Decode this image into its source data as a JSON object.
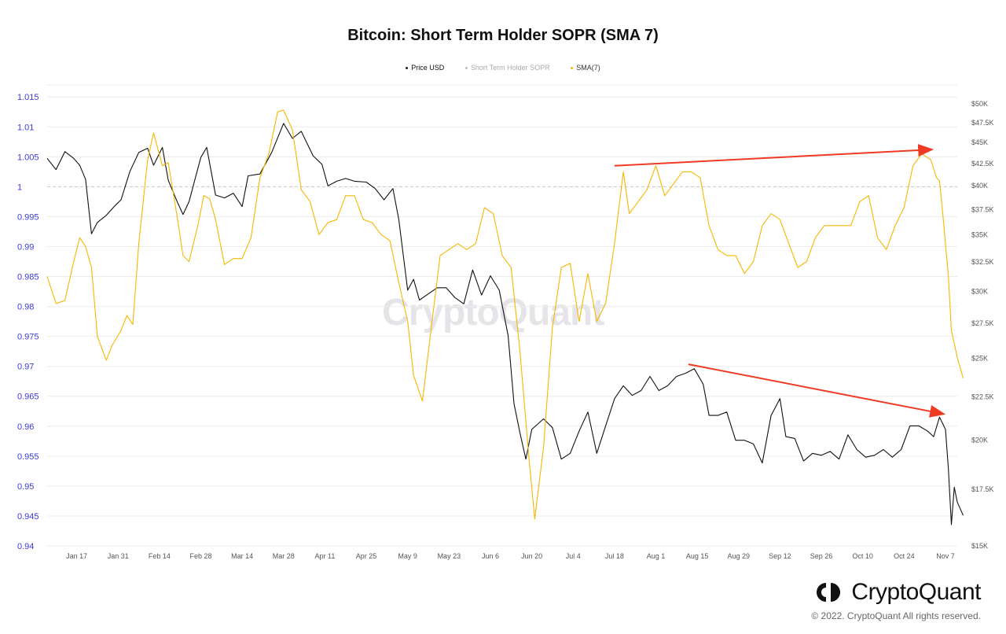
{
  "chart_data": {
    "type": "line",
    "title": "Bitcoin: Short Term Holder SOPR (SMA 7)",
    "legend": [
      {
        "name": "Price USD",
        "color": "#111111"
      },
      {
        "name": "Short Term Holder SOPR",
        "color": "#bdbdbd"
      },
      {
        "name": "SMA(7)",
        "color": "#f5b700"
      }
    ],
    "legend_placement": "top",
    "grid": true,
    "left_axis": {
      "ylim": [
        0.94,
        1.017
      ],
      "ticks": [
        "1.015",
        "1.01",
        "1.005",
        "1",
        "0.995",
        "0.99",
        "0.985",
        "0.98",
        "0.975",
        "0.97",
        "0.965",
        "0.96",
        "0.955",
        "0.95",
        "0.945",
        "0.94"
      ],
      "reference_line": 1.0
    },
    "right_axis": {
      "scale": "log",
      "ylim": [
        15000,
        50000
      ],
      "ticks": [
        "$50K",
        "$47.5K",
        "$45K",
        "$42.5K",
        "$40K",
        "$37.5K",
        "$35K",
        "$32.5K",
        "$30K",
        "$27.5K",
        "$25K",
        "$22.5K",
        "$20K",
        "$17.5K",
        "$15K"
      ]
    },
    "x_ticks": [
      "Jan 17",
      "Jan 31",
      "Feb 14",
      "Feb 28",
      "Mar 14",
      "Mar 28",
      "Apr 11",
      "Apr 25",
      "May 9",
      "May 23",
      "Jun 6",
      "Jun 20",
      "Jul 4",
      "Jul 18",
      "Aug 1",
      "Aug 15",
      "Aug 29",
      "Sep 12",
      "Sep 26",
      "Oct 10",
      "Oct 24",
      "Nov 7"
    ],
    "x_range": [
      "2022-01-07",
      "2022-11-11"
    ],
    "series": [
      {
        "name": "Price USD",
        "axis": "right",
        "color": "#111111",
        "points": [
          [
            "2022-01-07",
            43100
          ],
          [
            "2022-01-10",
            41800
          ],
          [
            "2022-01-13",
            43900
          ],
          [
            "2022-01-16",
            43100
          ],
          [
            "2022-01-18",
            42300
          ],
          [
            "2022-01-20",
            40700
          ],
          [
            "2022-01-22",
            35100
          ],
          [
            "2022-01-24",
            36200
          ],
          [
            "2022-01-27",
            36900
          ],
          [
            "2022-01-30",
            37900
          ],
          [
            "2022-02-01",
            38500
          ],
          [
            "2022-02-04",
            41600
          ],
          [
            "2022-02-07",
            43800
          ],
          [
            "2022-02-10",
            44300
          ],
          [
            "2022-02-12",
            42300
          ],
          [
            "2022-02-15",
            44400
          ],
          [
            "2022-02-17",
            40600
          ],
          [
            "2022-02-20",
            38300
          ],
          [
            "2022-02-22",
            37000
          ],
          [
            "2022-02-24",
            38300
          ],
          [
            "2022-02-28",
            43200
          ],
          [
            "2022-03-02",
            44400
          ],
          [
            "2022-03-05",
            39000
          ],
          [
            "2022-03-08",
            38700
          ],
          [
            "2022-03-11",
            39200
          ],
          [
            "2022-03-14",
            37800
          ],
          [
            "2022-03-16",
            41100
          ],
          [
            "2022-03-20",
            41300
          ],
          [
            "2022-03-24",
            43800
          ],
          [
            "2022-03-28",
            47400
          ],
          [
            "2022-03-31",
            45500
          ],
          [
            "2022-04-03",
            46400
          ],
          [
            "2022-04-07",
            43400
          ],
          [
            "2022-04-10",
            42400
          ],
          [
            "2022-04-12",
            40000
          ],
          [
            "2022-04-15",
            40500
          ],
          [
            "2022-04-18",
            40800
          ],
          [
            "2022-04-21",
            40500
          ],
          [
            "2022-04-25",
            40400
          ],
          [
            "2022-04-28",
            39700
          ],
          [
            "2022-05-01",
            38500
          ],
          [
            "2022-05-04",
            39700
          ],
          [
            "2022-05-06",
            36500
          ],
          [
            "2022-05-09",
            30100
          ],
          [
            "2022-05-11",
            31000
          ],
          [
            "2022-05-13",
            29300
          ],
          [
            "2022-05-16",
            29800
          ],
          [
            "2022-05-19",
            30300
          ],
          [
            "2022-05-22",
            30300
          ],
          [
            "2022-05-25",
            29500
          ],
          [
            "2022-05-28",
            29000
          ],
          [
            "2022-05-31",
            31800
          ],
          [
            "2022-06-03",
            29700
          ],
          [
            "2022-06-06",
            31300
          ],
          [
            "2022-06-09",
            30100
          ],
          [
            "2022-06-12",
            26600
          ],
          [
            "2022-06-14",
            22100
          ],
          [
            "2022-06-16",
            20400
          ],
          [
            "2022-06-18",
            19000
          ],
          [
            "2022-06-20",
            20600
          ],
          [
            "2022-06-24",
            21200
          ],
          [
            "2022-06-27",
            20700
          ],
          [
            "2022-06-30",
            19000
          ],
          [
            "2022-07-03",
            19300
          ],
          [
            "2022-07-06",
            20500
          ],
          [
            "2022-07-09",
            21600
          ],
          [
            "2022-07-12",
            19300
          ],
          [
            "2022-07-15",
            20800
          ],
          [
            "2022-07-18",
            22400
          ],
          [
            "2022-07-21",
            23200
          ],
          [
            "2022-07-24",
            22600
          ],
          [
            "2022-07-27",
            22900
          ],
          [
            "2022-07-30",
            23800
          ],
          [
            "2022-08-02",
            22900
          ],
          [
            "2022-08-05",
            23200
          ],
          [
            "2022-08-08",
            23800
          ],
          [
            "2022-08-11",
            24000
          ],
          [
            "2022-08-14",
            24300
          ],
          [
            "2022-08-17",
            23300
          ],
          [
            "2022-08-19",
            21400
          ],
          [
            "2022-08-22",
            21400
          ],
          [
            "2022-08-25",
            21600
          ],
          [
            "2022-08-28",
            20000
          ],
          [
            "2022-08-31",
            20000
          ],
          [
            "2022-09-03",
            19800
          ],
          [
            "2022-09-06",
            18800
          ],
          [
            "2022-09-09",
            21400
          ],
          [
            "2022-09-12",
            22400
          ],
          [
            "2022-09-14",
            20200
          ],
          [
            "2022-09-17",
            20100
          ],
          [
            "2022-09-20",
            18900
          ],
          [
            "2022-09-23",
            19300
          ],
          [
            "2022-09-26",
            19200
          ],
          [
            "2022-09-29",
            19400
          ],
          [
            "2022-10-02",
            19000
          ],
          [
            "2022-10-05",
            20300
          ],
          [
            "2022-10-08",
            19500
          ],
          [
            "2022-10-11",
            19100
          ],
          [
            "2022-10-14",
            19200
          ],
          [
            "2022-10-17",
            19500
          ],
          [
            "2022-10-20",
            19100
          ],
          [
            "2022-10-23",
            19500
          ],
          [
            "2022-10-26",
            20800
          ],
          [
            "2022-10-29",
            20800
          ],
          [
            "2022-11-01",
            20500
          ],
          [
            "2022-11-03",
            20200
          ],
          [
            "2022-11-05",
            21300
          ],
          [
            "2022-11-07",
            20600
          ],
          [
            "2022-11-08",
            18500
          ],
          [
            "2022-11-09",
            15900
          ],
          [
            "2022-11-10",
            17600
          ],
          [
            "2022-11-11",
            16900
          ],
          [
            "2022-11-13",
            16300
          ]
        ]
      },
      {
        "name": "SMA(7)",
        "axis": "left",
        "color": "#f5b700",
        "points": [
          [
            "2022-01-07",
            0.985
          ],
          [
            "2022-01-10",
            0.9805
          ],
          [
            "2022-01-13",
            0.981
          ],
          [
            "2022-01-16",
            0.9875
          ],
          [
            "2022-01-18",
            0.9915
          ],
          [
            "2022-01-20",
            0.99
          ],
          [
            "2022-01-22",
            0.9865
          ],
          [
            "2022-01-24",
            0.975
          ],
          [
            "2022-01-27",
            0.971
          ],
          [
            "2022-01-29",
            0.9735
          ],
          [
            "2022-02-01",
            0.976
          ],
          [
            "2022-02-03",
            0.9785
          ],
          [
            "2022-02-05",
            0.977
          ],
          [
            "2022-02-07",
            0.9905
          ],
          [
            "2022-02-10",
            1.0045
          ],
          [
            "2022-02-12",
            1.009
          ],
          [
            "2022-02-15",
            1.0035
          ],
          [
            "2022-02-17",
            1.004
          ],
          [
            "2022-02-20",
            0.995
          ],
          [
            "2022-02-22",
            0.9885
          ],
          [
            "2022-02-24",
            0.9875
          ],
          [
            "2022-02-27",
            0.9935
          ],
          [
            "2022-03-01",
            0.9985
          ],
          [
            "2022-03-03",
            0.998
          ],
          [
            "2022-03-05",
            0.9945
          ],
          [
            "2022-03-08",
            0.987
          ],
          [
            "2022-03-11",
            0.988
          ],
          [
            "2022-03-14",
            0.988
          ],
          [
            "2022-03-17",
            0.9915
          ],
          [
            "2022-03-20",
            1.0015
          ],
          [
            "2022-03-23",
            1.0055
          ],
          [
            "2022-03-26",
            1.0125
          ],
          [
            "2022-03-28",
            1.0128
          ],
          [
            "2022-03-31",
            1.0095
          ],
          [
            "2022-04-03",
            0.9995
          ],
          [
            "2022-04-06",
            0.9975
          ],
          [
            "2022-04-09",
            0.992
          ],
          [
            "2022-04-12",
            0.994
          ],
          [
            "2022-04-15",
            0.9945
          ],
          [
            "2022-04-18",
            0.9985
          ],
          [
            "2022-04-21",
            0.9985
          ],
          [
            "2022-04-24",
            0.9945
          ],
          [
            "2022-04-27",
            0.994
          ],
          [
            "2022-04-30",
            0.992
          ],
          [
            "2022-05-03",
            0.991
          ],
          [
            "2022-05-06",
            0.984
          ],
          [
            "2022-05-09",
            0.9775
          ],
          [
            "2022-05-11",
            0.9685
          ],
          [
            "2022-05-14",
            0.9642
          ],
          [
            "2022-05-17",
            0.9765
          ],
          [
            "2022-05-20",
            0.9885
          ],
          [
            "2022-05-23",
            0.9895
          ],
          [
            "2022-05-26",
            0.9905
          ],
          [
            "2022-05-29",
            0.9895
          ],
          [
            "2022-06-01",
            0.9905
          ],
          [
            "2022-06-04",
            0.9965
          ],
          [
            "2022-06-07",
            0.9955
          ],
          [
            "2022-06-10",
            0.9885
          ],
          [
            "2022-06-13",
            0.9865
          ],
          [
            "2022-06-16",
            0.9725
          ],
          [
            "2022-06-19",
            0.955
          ],
          [
            "2022-06-21",
            0.9445
          ],
          [
            "2022-06-24",
            0.9565
          ],
          [
            "2022-06-27",
            0.9765
          ],
          [
            "2022-06-30",
            0.9865
          ],
          [
            "2022-07-03",
            0.9872
          ],
          [
            "2022-07-06",
            0.9775
          ],
          [
            "2022-07-09",
            0.9855
          ],
          [
            "2022-07-12",
            0.9775
          ],
          [
            "2022-07-15",
            0.9805
          ],
          [
            "2022-07-18",
            0.9905
          ],
          [
            "2022-07-21",
            1.0025
          ],
          [
            "2022-07-23",
            0.9955
          ],
          [
            "2022-07-26",
            0.9975
          ],
          [
            "2022-07-29",
            0.9995
          ],
          [
            "2022-08-01",
            1.0035
          ],
          [
            "2022-08-04",
            0.9985
          ],
          [
            "2022-08-07",
            1.0005
          ],
          [
            "2022-08-10",
            1.0025
          ],
          [
            "2022-08-13",
            1.0025
          ],
          [
            "2022-08-16",
            1.0015
          ],
          [
            "2022-08-19",
            0.9935
          ],
          [
            "2022-08-22",
            0.9895
          ],
          [
            "2022-08-25",
            0.9885
          ],
          [
            "2022-08-28",
            0.9885
          ],
          [
            "2022-08-31",
            0.9855
          ],
          [
            "2022-09-03",
            0.9875
          ],
          [
            "2022-09-06",
            0.9935
          ],
          [
            "2022-09-09",
            0.9955
          ],
          [
            "2022-09-12",
            0.9945
          ],
          [
            "2022-09-15",
            0.9905
          ],
          [
            "2022-09-18",
            0.9865
          ],
          [
            "2022-09-21",
            0.9875
          ],
          [
            "2022-09-24",
            0.9915
          ],
          [
            "2022-09-27",
            0.9935
          ],
          [
            "2022-09-30",
            0.9935
          ],
          [
            "2022-10-03",
            0.9935
          ],
          [
            "2022-10-06",
            0.9935
          ],
          [
            "2022-10-09",
            0.9975
          ],
          [
            "2022-10-12",
            0.9985
          ],
          [
            "2022-10-15",
            0.9915
          ],
          [
            "2022-10-18",
            0.9895
          ],
          [
            "2022-10-21",
            0.9935
          ],
          [
            "2022-10-24",
            0.9965
          ],
          [
            "2022-10-27",
            1.0035
          ],
          [
            "2022-10-30",
            1.0055
          ],
          [
            "2022-11-02",
            1.0045
          ],
          [
            "2022-11-04",
            1.0015
          ],
          [
            "2022-11-05",
            1.001
          ],
          [
            "2022-11-06",
            0.996
          ],
          [
            "2022-11-08",
            0.985
          ],
          [
            "2022-11-09",
            0.976
          ],
          [
            "2022-11-11",
            0.9715
          ],
          [
            "2022-11-13",
            0.968
          ]
        ]
      }
    ],
    "reference_line": {
      "axis": "left",
      "value": 1.0
    },
    "annotations": [
      {
        "type": "arrow",
        "color": "#ef3b24",
        "axis": "left",
        "from": [
          "2022-07-18",
          1.0035
        ],
        "to": [
          "2022-11-02",
          1.0062
        ]
      },
      {
        "type": "arrow",
        "color": "#ef3b24",
        "axis": "right",
        "from": [
          "2022-08-12",
          24600
        ],
        "to": [
          "2022-11-06",
          21500
        ]
      }
    ]
  },
  "branding": {
    "watermark": "CryptoQuant",
    "logo_text": "CryptoQuant",
    "copyright": "© 2022. CryptoQuant All rights reserved."
  }
}
